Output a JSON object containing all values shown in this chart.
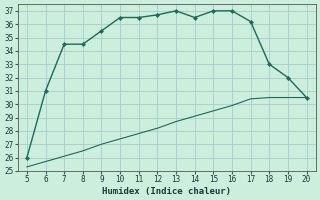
{
  "title": "",
  "xlabel": "Humidex (Indice chaleur)",
  "background_color": "#cceedd",
  "grid_color": "#aacccc",
  "line_color": "#1a6b5a",
  "x_main": [
    5,
    6,
    7,
    8,
    9,
    10,
    11,
    12,
    13,
    14,
    15,
    16,
    17,
    18,
    19,
    20
  ],
  "y_main": [
    26,
    31,
    34.5,
    34.5,
    35.5,
    36.5,
    36.5,
    36.7,
    37,
    36.5,
    37,
    37,
    36.2,
    33,
    32,
    30.5
  ],
  "x_line2": [
    5,
    6,
    7,
    8,
    9,
    10,
    11,
    12,
    13,
    14,
    15,
    16,
    17,
    18,
    19,
    20
  ],
  "y_line2": [
    25.3,
    25.7,
    26.1,
    26.5,
    27.0,
    27.4,
    27.8,
    28.2,
    28.7,
    29.1,
    29.5,
    29.9,
    30.4,
    30.5,
    30.5,
    30.5
  ],
  "xlim": [
    4.5,
    20.5
  ],
  "ylim": [
    25,
    37.5
  ],
  "xticks": [
    5,
    6,
    7,
    8,
    9,
    10,
    11,
    12,
    13,
    14,
    15,
    16,
    17,
    18,
    19,
    20
  ],
  "yticks": [
    25,
    26,
    27,
    28,
    29,
    30,
    31,
    32,
    33,
    34,
    35,
    36,
    37
  ],
  "label_fontsize": 6.5,
  "tick_fontsize": 5.5
}
